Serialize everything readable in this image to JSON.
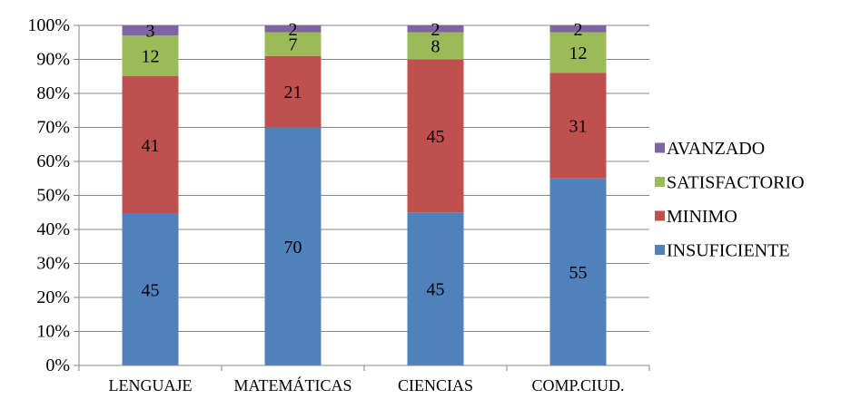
{
  "chart_data": {
    "type": "bar",
    "stacked": "percent",
    "categories": [
      "LENGUAJE",
      "MATEMÁTICAS",
      "CIENCIAS",
      "COMP.CIUD."
    ],
    "series": [
      {
        "name": "INSUFICIENTE",
        "values": [
          45,
          70,
          45,
          55
        ],
        "color": "#4f81bd"
      },
      {
        "name": "MINIMO",
        "values": [
          41,
          21,
          45,
          31
        ],
        "color": "#c0504d"
      },
      {
        "name": "SATISFACTORIO",
        "values": [
          12,
          7,
          8,
          12
        ],
        "color": "#9bbb59"
      },
      {
        "name": "AVANZADO",
        "values": [
          3,
          2,
          2,
          2
        ],
        "color": "#8064a2"
      }
    ],
    "ylim": [
      0,
      100
    ],
    "yticks": [
      "0%",
      "10%",
      "20%",
      "30%",
      "40%",
      "50%",
      "60%",
      "70%",
      "80%",
      "90%",
      "100%"
    ],
    "grid": true,
    "legend": "right",
    "title": "",
    "xlabel": "",
    "ylabel": ""
  }
}
